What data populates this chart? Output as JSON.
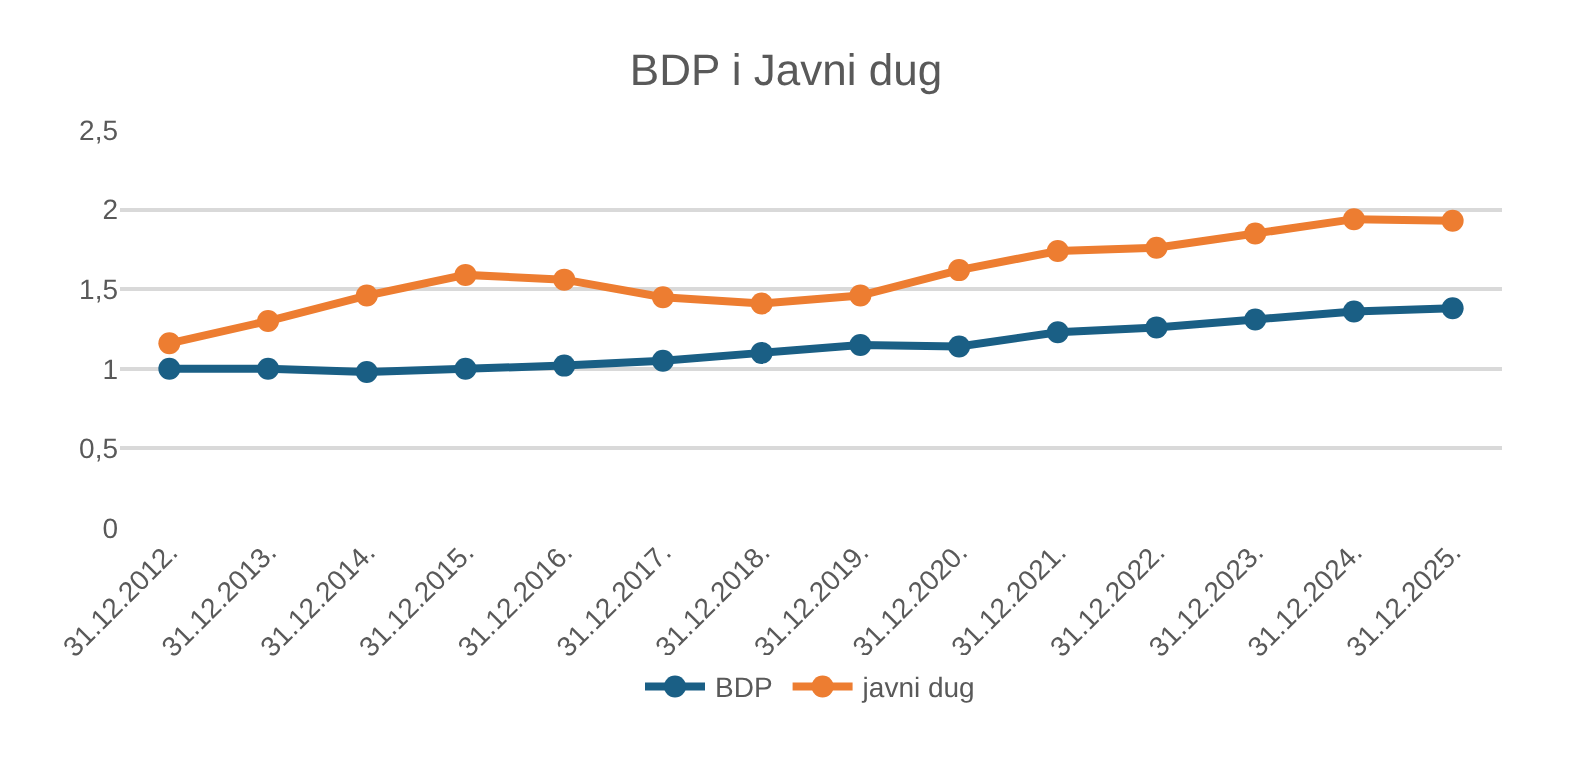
{
  "chart_data": {
    "type": "line",
    "title": "BDP i Javni dug",
    "categories": [
      "31.12.2012.",
      "31.12.2013.",
      "31.12.2014.",
      "31.12.2015.",
      "31.12.2016.",
      "31.12.2017.",
      "31.12.2018.",
      "31.12.2019.",
      "31.12.2020.",
      "31.12.2021.",
      "31.12.2022.",
      "31.12.2023.",
      "31.12.2024.",
      "31.12.2025."
    ],
    "series": [
      {
        "name": "BDP",
        "color": "#1a5f85",
        "values": [
          1.0,
          1.0,
          0.98,
          1.0,
          1.02,
          1.05,
          1.1,
          1.15,
          1.14,
          1.23,
          1.26,
          1.31,
          1.36,
          1.38
        ]
      },
      {
        "name": "javni dug",
        "color": "#ed7d31",
        "values": [
          1.16,
          1.3,
          1.46,
          1.59,
          1.56,
          1.45,
          1.41,
          1.46,
          1.62,
          1.74,
          1.76,
          1.85,
          1.94,
          1.93
        ]
      }
    ],
    "ylim": [
      0,
      2.5
    ],
    "yticks": [
      0,
      {
        "value": 0.5,
        "label": "0,5"
      },
      1,
      {
        "value": 1.5,
        "label": "1,5"
      },
      2,
      {
        "value": 2.5,
        "label": "2,5"
      }
    ],
    "grid": "y",
    "legend": "bottom",
    "marker": "circle",
    "line_style": "solid"
  }
}
